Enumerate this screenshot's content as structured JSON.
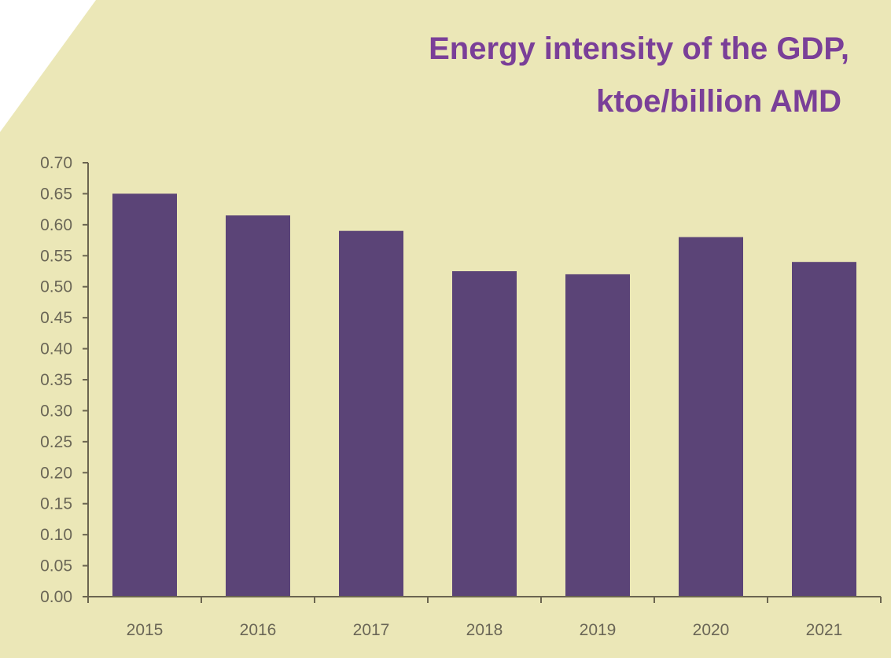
{
  "colors": {
    "background": "#ebe7b7",
    "bar": "#5b4477",
    "title": "#7a3f98",
    "axis": "#6b6550",
    "tick_text": "#6a6656"
  },
  "chart_data": {
    "type": "bar",
    "title_lines": [
      "Energy intensity of the GDP,",
      "ktoe/billion AMD"
    ],
    "xlabel": "",
    "ylabel": "",
    "categories": [
      "2015",
      "2016",
      "2017",
      "2018",
      "2019",
      "2020",
      "2021"
    ],
    "values": [
      0.65,
      0.615,
      0.59,
      0.525,
      0.52,
      0.58,
      0.54
    ],
    "ylim": [
      0,
      0.7
    ],
    "ytick_labels": [
      "0.00",
      "0.05",
      "0.10",
      "0.15",
      "0.20",
      "0.25",
      "0.30",
      "0.35",
      "0.40",
      "0.45",
      "0.50",
      "0.55",
      "0.60",
      "0.65",
      "0.70"
    ],
    "grid": false,
    "legend": "none"
  }
}
